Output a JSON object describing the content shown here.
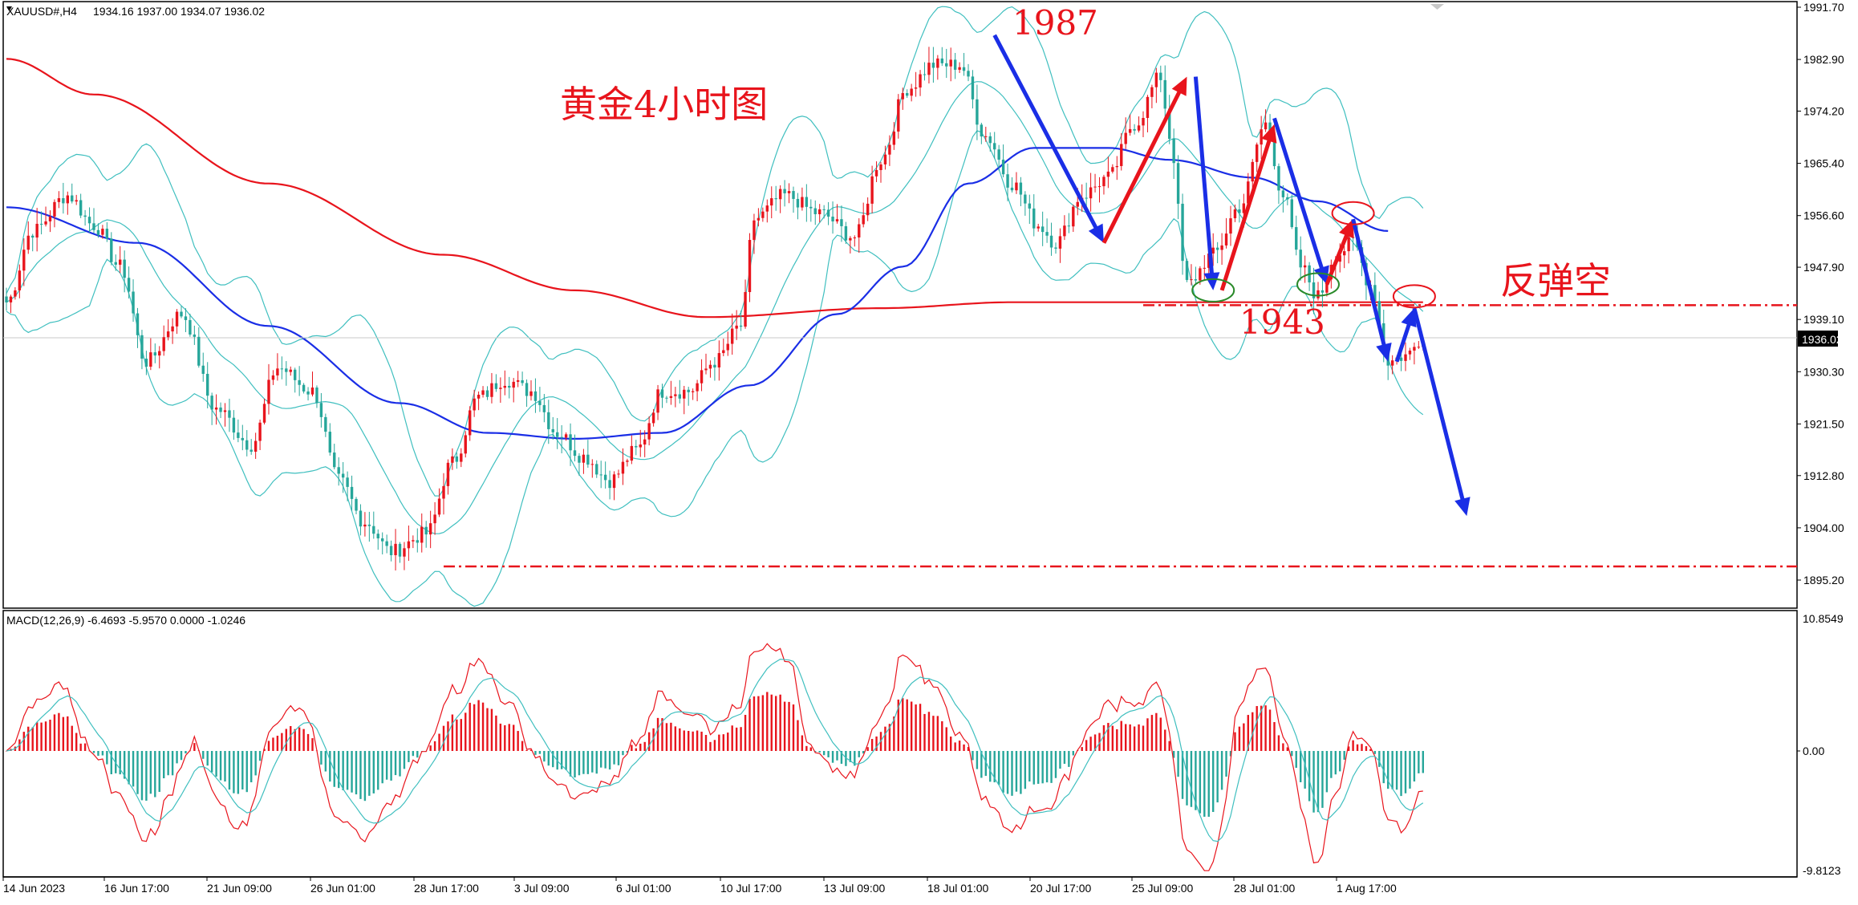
{
  "header": {
    "symbol": "XAUUSD#,H4",
    "ohlc": "1934.16 1937.00 1934.07 1936.02"
  },
  "macd": {
    "label": "MACD(12,26,9) -6.4693 -5.9570 0.0000 -1.0246",
    "scale": [
      "10.8549",
      "0.00",
      "-9.8123"
    ]
  },
  "chart_data": {
    "type": "candlestick",
    "symbol": "XAUUSD#",
    "timeframe": "H4",
    "last_price": "1936.02",
    "ylim": [
      1890,
      1992
    ],
    "y_ticks": [
      "1991.70",
      "1982.90",
      "1974.20",
      "1965.40",
      "1956.60",
      "1947.90",
      "1939.10",
      "1930.30",
      "1921.50",
      "1912.80",
      "1904.00",
      "1895.20"
    ],
    "x_ticks": [
      "14 Jun 2023",
      "16 Jun 17:00",
      "21 Jun 09:00",
      "26 Jun 01:00",
      "28 Jun 17:00",
      "3 Jul 09:00",
      "6 Jul 01:00",
      "10 Jul 17:00",
      "13 Jul 09:00",
      "18 Jul 01:00",
      "20 Jul 17:00",
      "25 Jul 09:00",
      "28 Jul 01:00",
      "1 Aug 17:00"
    ],
    "anchors": [
      [
        0,
        1942
      ],
      [
        6,
        1954
      ],
      [
        14,
        1960
      ],
      [
        20,
        1955
      ],
      [
        26,
        1948
      ],
      [
        32,
        1932
      ],
      [
        40,
        1940
      ],
      [
        48,
        1924
      ],
      [
        56,
        1918
      ],
      [
        62,
        1931
      ],
      [
        70,
        1927
      ],
      [
        76,
        1912
      ],
      [
        82,
        1905
      ],
      [
        88,
        1900
      ],
      [
        96,
        1903
      ],
      [
        102,
        1915
      ],
      [
        108,
        1926
      ],
      [
        114,
        1929
      ],
      [
        120,
        1927
      ],
      [
        126,
        1920
      ],
      [
        132,
        1916
      ],
      [
        138,
        1912
      ],
      [
        144,
        1917
      ],
      [
        150,
        1927
      ],
      [
        156,
        1927
      ],
      [
        162,
        1932
      ],
      [
        168,
        1938
      ],
      [
        171,
        1956
      ],
      [
        178,
        1960
      ],
      [
        186,
        1957
      ],
      [
        194,
        1953
      ],
      [
        200,
        1966
      ],
      [
        206,
        1978
      ],
      [
        212,
        1982
      ],
      [
        218,
        1982
      ],
      [
        224,
        1970
      ],
      [
        230,
        1962
      ],
      [
        236,
        1955
      ],
      [
        240,
        1952
      ],
      [
        246,
        1960
      ],
      [
        252,
        1963
      ],
      [
        258,
        1972
      ],
      [
        264,
        1980
      ],
      [
        266,
        1970
      ],
      [
        270,
        1945
      ],
      [
        276,
        1950
      ],
      [
        282,
        1958
      ],
      [
        288,
        1972
      ],
      [
        292,
        1960
      ],
      [
        296,
        1948
      ],
      [
        300,
        1943
      ],
      [
        304,
        1950
      ],
      [
        308,
        1952
      ],
      [
        312,
        1945
      ],
      [
        316,
        1932
      ],
      [
        320,
        1933
      ],
      [
        324,
        1936
      ]
    ],
    "ma200": [
      [
        0,
        1983
      ],
      [
        20,
        1977
      ],
      [
        60,
        1962
      ],
      [
        100,
        1950
      ],
      [
        130,
        1944
      ],
      [
        160,
        1939.5
      ],
      [
        200,
        1941
      ],
      [
        230,
        1942
      ],
      [
        270,
        1942
      ],
      [
        300,
        1942
      ],
      [
        324,
        1942
      ]
    ],
    "ma50": [
      [
        0,
        1958
      ],
      [
        30,
        1952
      ],
      [
        60,
        1938
      ],
      [
        90,
        1925
      ],
      [
        110,
        1920
      ],
      [
        130,
        1919
      ],
      [
        150,
        1920
      ],
      [
        170,
        1928
      ],
      [
        190,
        1940
      ],
      [
        205,
        1948
      ],
      [
        220,
        1962
      ],
      [
        235,
        1968
      ],
      [
        252,
        1968
      ],
      [
        266,
        1966
      ],
      [
        285,
        1963
      ],
      [
        300,
        1959
      ],
      [
        316,
        1954
      ]
    ],
    "levels": [
      {
        "value": 1941.5,
        "style": "dash-dot",
        "color": "#e8141c",
        "from": 260
      },
      {
        "value": 1897.5,
        "style": "dash-dot",
        "color": "#e8141c",
        "from": 100
      }
    ],
    "annotations": [
      {
        "text": "黄金4小时图",
        "color": "#e8141c"
      },
      {
        "text": "1987",
        "color": "#e8141c"
      },
      {
        "text": "1943",
        "color": "#e8141c"
      },
      {
        "text": "反弹空",
        "color": "#e8141c"
      }
    ],
    "arrows": [
      {
        "color": "#1a2ee6",
        "from": [
          226,
          1987
        ],
        "to": [
          251,
          1952
        ]
      },
      {
        "color": "#e8141c",
        "from": [
          251,
          1952
        ],
        "to": [
          270,
          1980
        ]
      },
      {
        "color": "#1a2ee6",
        "from": [
          272,
          1980
        ],
        "to": [
          276,
          1944
        ]
      },
      {
        "color": "#e8141c",
        "from": [
          278,
          1944
        ],
        "to": [
          290,
          1972
        ]
      },
      {
        "color": "#1a2ee6",
        "from": [
          290,
          1973
        ],
        "to": [
          302,
          1945
        ]
      },
      {
        "color": "#e8141c",
        "from": [
          302,
          1945
        ],
        "to": [
          308,
          1956
        ]
      },
      {
        "color": "#1a2ee6",
        "from": [
          308,
          1956
        ],
        "to": [
          316,
          1932
        ]
      },
      {
        "color": "#1a2ee6",
        "from": [
          318,
          1932
        ],
        "to": [
          322,
          1941
        ]
      },
      {
        "color": "#1a2ee6",
        "from": [
          322,
          1941
        ],
        "to": [
          334,
          1906
        ]
      }
    ],
    "marks": [
      {
        "shape": "ellipse",
        "color": "#e8141c",
        "x": 322,
        "y": 1943
      },
      {
        "shape": "ellipse",
        "color": "#e8141c",
        "x": 308,
        "y": 1957
      },
      {
        "shape": "ellipse",
        "color": "#2a8a2a",
        "x": 276,
        "y": 1944
      },
      {
        "shape": "ellipse",
        "color": "#2a8a2a",
        "x": 300,
        "y": 1945
      }
    ]
  }
}
